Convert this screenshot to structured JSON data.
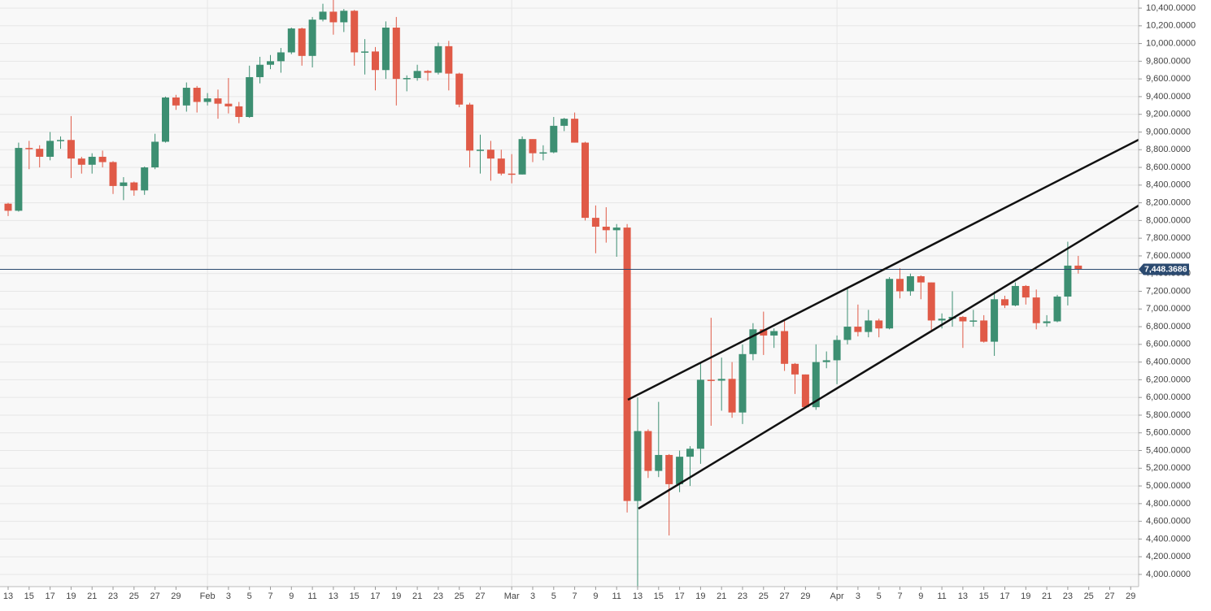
{
  "chart_data": {
    "type": "candlestick",
    "categories": [
      "13",
      null,
      "15",
      null,
      "17",
      null,
      "19",
      null,
      "21",
      null,
      "23",
      null,
      "25",
      null,
      "27",
      null,
      "29",
      null,
      null,
      "Feb",
      null,
      "3",
      null,
      "5",
      null,
      "7",
      null,
      "9",
      null,
      "11",
      null,
      "13",
      null,
      "15",
      null,
      "17",
      null,
      "19",
      null,
      "21",
      null,
      "23",
      null,
      "25",
      null,
      "27",
      null,
      null,
      "Mar",
      null,
      "3",
      null,
      "5",
      null,
      "7",
      null,
      "9",
      null,
      "11",
      null,
      "13",
      null,
      "15",
      null,
      "17",
      null,
      "19",
      null,
      "21",
      null,
      "23",
      null,
      "25",
      null,
      "27",
      null,
      "29",
      null,
      null,
      "Apr",
      null,
      "3",
      null,
      "5",
      null,
      "7",
      null,
      "9",
      null,
      "11",
      null,
      "13",
      null,
      "15",
      null,
      "17",
      null,
      "19",
      null,
      "21",
      null,
      "23",
      null,
      "25",
      null,
      "27",
      null,
      "29"
    ],
    "open": [
      8190,
      8110,
      8820,
      8810,
      8720,
      8900,
      8910,
      8700,
      8630,
      8720,
      8660,
      8390,
      8430,
      8340,
      8600,
      8890,
      9390,
      9300,
      9500,
      9340,
      9380,
      9320,
      9290,
      9170,
      9620,
      9760,
      9800,
      9900,
      10170,
      9860,
      10270,
      10360,
      10240,
      10370,
      9900,
      9910,
      9700,
      10180,
      9600,
      9610,
      9690,
      9670,
      9970,
      9660,
      9310,
      8790,
      8800,
      8700,
      8530,
      8520,
      8920,
      8760,
      8770,
      9070,
      9150,
      8880,
      8030,
      7930,
      7890,
      7920,
      4830,
      5620,
      5170,
      5350,
      5020,
      5330,
      5420,
      6200,
      6190,
      6210,
      5830,
      6490,
      6770,
      6700,
      6750,
      6380,
      6260,
      5890,
      6400,
      6420,
      6650,
      6800,
      6740,
      6870,
      6780,
      7340,
      7200,
      7370,
      7300,
      6870,
      6890,
      6910,
      6860,
      6870,
      6630,
      7110,
      7040,
      7260,
      7130,
      6840,
      6860,
      7140,
      7490,
      null,
      null,
      null,
      null,
      null
    ],
    "high": [
      8200,
      8880,
      8900,
      8850,
      9000,
      8950,
      9180,
      8720,
      8760,
      8790,
      8670,
      8490,
      8440,
      8610,
      8980,
      9400,
      9420,
      9560,
      9520,
      9440,
      9480,
      9610,
      9340,
      9750,
      9850,
      9870,
      9950,
      10180,
      10180,
      10300,
      10450,
      10500,
      10390,
      10380,
      10050,
      9960,
      10250,
      10300,
      9640,
      9760,
      9700,
      10010,
      10030,
      9670,
      9330,
      8970,
      8900,
      8800,
      8750,
      8950,
      8920,
      8850,
      9170,
      9160,
      9220,
      8890,
      8170,
      8150,
      7960,
      7960,
      6000,
      5640,
      5950,
      5360,
      5400,
      5450,
      6400,
      6900,
      6450,
      6400,
      6600,
      6840,
      6970,
      6780,
      6870,
      6390,
      6260,
      6600,
      6520,
      6700,
      7230,
      7050,
      6990,
      6890,
      7360,
      7460,
      7400,
      7380,
      7300,
      6950,
      7200,
      6920,
      6990,
      6930,
      7200,
      7150,
      7300,
      7270,
      7220,
      6930,
      7160,
      7760,
      7600,
      null,
      null,
      null,
      null,
      null
    ],
    "low": [
      8050,
      8100,
      8580,
      8600,
      8680,
      8810,
      8480,
      8530,
      8530,
      8600,
      8300,
      8230,
      8280,
      8290,
      8580,
      8880,
      9250,
      9230,
      9220,
      9300,
      9150,
      9210,
      9100,
      9160,
      9550,
      9710,
      9670,
      9880,
      9750,
      9730,
      10250,
      10100,
      10130,
      9750,
      9650,
      9470,
      9600,
      9300,
      9460,
      9580,
      9580,
      9650,
      9470,
      9280,
      8600,
      8530,
      8450,
      8510,
      8420,
      8520,
      8660,
      8680,
      8760,
      9010,
      8880,
      8000,
      7630,
      7750,
      7590,
      4700,
      3860,
      5090,
      5100,
      4440,
      4930,
      5000,
      5250,
      5680,
      5850,
      5770,
      5700,
      6420,
      6480,
      6560,
      6300,
      6040,
      5880,
      5860,
      6330,
      6150,
      6600,
      6690,
      6680,
      6680,
      6770,
      7120,
      7150,
      7110,
      6750,
      6780,
      6800,
      6560,
      6800,
      6620,
      6470,
      7010,
      7030,
      7050,
      6770,
      6800,
      6850,
      7040,
      7400,
      null,
      null,
      null,
      null,
      null
    ],
    "close": [
      8110,
      8820,
      8810,
      8720,
      8900,
      8910,
      8700,
      8630,
      8720,
      8660,
      8390,
      8430,
      8340,
      8600,
      8890,
      9390,
      9300,
      9500,
      9340,
      9380,
      9320,
      9290,
      9170,
      9620,
      9760,
      9800,
      9900,
      10170,
      9860,
      10270,
      10360,
      10240,
      10370,
      9900,
      9910,
      9700,
      10180,
      9600,
      9610,
      9690,
      9670,
      9970,
      9660,
      9310,
      8790,
      8800,
      8700,
      8530,
      8520,
      8920,
      8760,
      8770,
      9070,
      9150,
      8880,
      8030,
      7930,
      7890,
      7920,
      4830,
      5620,
      5170,
      5350,
      5020,
      5330,
      5420,
      6200,
      6190,
      6210,
      5830,
      6490,
      6770,
      6700,
      6750,
      6380,
      6260,
      5890,
      6400,
      6420,
      6650,
      6800,
      6740,
      6870,
      6780,
      7340,
      7200,
      7370,
      7300,
      6870,
      6890,
      6910,
      6860,
      6870,
      6630,
      7110,
      7040,
      7260,
      7130,
      6840,
      6860,
      7140,
      7490,
      7448.3686,
      null,
      null,
      null,
      null,
      null
    ],
    "up_color": "#3d8f72",
    "down_color": "#e05a47",
    "ylim": [
      3862,
      10492
    ],
    "yticks": [
      {
        "value": 4000,
        "label": "4,000.0000"
      },
      {
        "value": 4200,
        "label": "4,200.0000"
      },
      {
        "value": 4400,
        "label": "4,400.0000"
      },
      {
        "value": 4600,
        "label": "4,600.0000"
      },
      {
        "value": 4800,
        "label": "4,800.0000"
      },
      {
        "value": 5000,
        "label": "5,000.0000"
      },
      {
        "value": 5200,
        "label": "5,200.0000"
      },
      {
        "value": 5400,
        "label": "5,400.0000"
      },
      {
        "value": 5600,
        "label": "5,600.0000"
      },
      {
        "value": 5800,
        "label": "5,800.0000"
      },
      {
        "value": 6000,
        "label": "6,000.0000"
      },
      {
        "value": 6200,
        "label": "6,200.0000"
      },
      {
        "value": 6400,
        "label": "6,400.0000"
      },
      {
        "value": 6600,
        "label": "6,600.0000"
      },
      {
        "value": 6800,
        "label": "6,800.0000"
      },
      {
        "value": 7000,
        "label": "7,000.0000"
      },
      {
        "value": 7200,
        "label": "7,200.0000"
      },
      {
        "value": 7400,
        "label": "7,400.0000"
      },
      {
        "value": 7600,
        "label": "7,600.0000"
      },
      {
        "value": 7800,
        "label": "7,800.0000"
      },
      {
        "value": 8000,
        "label": "8,000.0000"
      },
      {
        "value": 8200,
        "label": "8,200.0000"
      },
      {
        "value": 8400,
        "label": "8,400.0000"
      },
      {
        "value": 8600,
        "label": "8,600.0000"
      },
      {
        "value": 8800,
        "label": "8,800.0000"
      },
      {
        "value": 9000,
        "label": "9,000.0000"
      },
      {
        "value": 9200,
        "label": "9,200.0000"
      },
      {
        "value": 9400,
        "label": "9,400.0000"
      },
      {
        "value": 9600,
        "label": "9,600.0000"
      },
      {
        "value": 9800,
        "label": "9,800.0000"
      },
      {
        "value": 10000,
        "label": "10,000.0000"
      },
      {
        "value": 10200,
        "label": "10,200.0000"
      },
      {
        "value": 10400,
        "label": "10,400.0000"
      }
    ],
    "last_price": {
      "value": 7448.3686,
      "label": "7,448.3686"
    },
    "last_price_color": "#2b4a70",
    "grid": true
  }
}
